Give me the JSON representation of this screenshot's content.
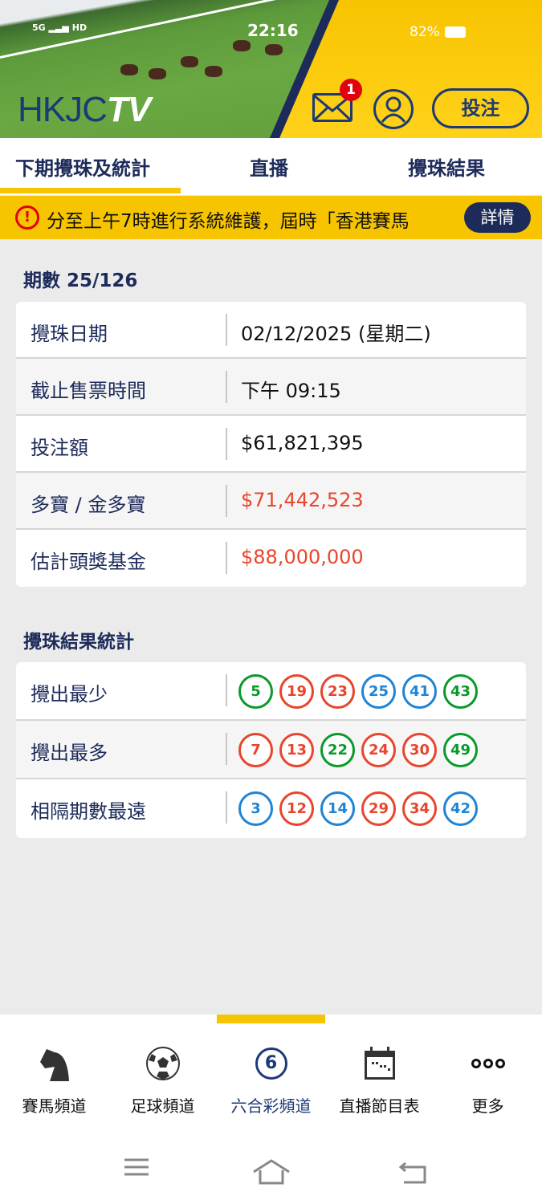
{
  "status_bar": {
    "time": "22:16",
    "battery": "82%",
    "signal": "5G",
    "hd": "HD"
  },
  "header": {
    "logo": "HKJC",
    "logo_tv": "TV",
    "notification_count": "1",
    "bet_label": "投注"
  },
  "tabs": [
    {
      "label": "下期攪珠及統計",
      "active": true
    },
    {
      "label": "直播"
    },
    {
      "label": "攪珠結果"
    }
  ],
  "notice": {
    "text": "分至上午7時進行系統維護，屆時「香港賽馬",
    "detail_label": "詳情"
  },
  "draw": {
    "title": "期數 25/126",
    "rows": [
      {
        "label": "攪珠日期",
        "value": "02/12/2025 (星期二)",
        "highlight": false
      },
      {
        "label": "截止售票時間",
        "value": "下午 09:15",
        "highlight": false
      },
      {
        "label": "投注額",
        "value": "$61,821,395",
        "highlight": false
      },
      {
        "label": "多寶 / 金多寶",
        "value": "$71,442,523",
        "highlight": true
      },
      {
        "label": "估計頭獎基金",
        "value": "$88,000,000",
        "highlight": true
      }
    ]
  },
  "stats": {
    "title": "攪珠結果統計",
    "rows": [
      {
        "label": "攪出最少",
        "balls": [
          {
            "n": "5",
            "c": "green"
          },
          {
            "n": "19",
            "c": "red"
          },
          {
            "n": "23",
            "c": "red"
          },
          {
            "n": "25",
            "c": "blue"
          },
          {
            "n": "41",
            "c": "blue"
          },
          {
            "n": "43",
            "c": "green"
          }
        ]
      },
      {
        "label": "攪出最多",
        "balls": [
          {
            "n": "7",
            "c": "red"
          },
          {
            "n": "13",
            "c": "red"
          },
          {
            "n": "22",
            "c": "green"
          },
          {
            "n": "24",
            "c": "red"
          },
          {
            "n": "30",
            "c": "red"
          },
          {
            "n": "49",
            "c": "green"
          }
        ]
      },
      {
        "label": "相隔期數最遠",
        "balls": [
          {
            "n": "3",
            "c": "blue"
          },
          {
            "n": "12",
            "c": "red"
          },
          {
            "n": "14",
            "c": "blue"
          },
          {
            "n": "29",
            "c": "red"
          },
          {
            "n": "34",
            "c": "red"
          },
          {
            "n": "42",
            "c": "blue"
          }
        ]
      }
    ]
  },
  "bottom_nav": [
    {
      "label": "賽馬頻道",
      "icon": "horse-icon"
    },
    {
      "label": "足球頻道",
      "icon": "football-icon"
    },
    {
      "label": "六合彩頻道",
      "icon": "mark-six-icon",
      "icon_text": "6",
      "active": true
    },
    {
      "label": "直播節目表",
      "icon": "calendar-icon"
    },
    {
      "label": "更多",
      "icon": "more-icon"
    }
  ],
  "colors": {
    "accent": "#f7c400",
    "navy": "#1d2b5a",
    "red": "#e8452c",
    "green": "#0a9a2a",
    "blue": "#1f84d6"
  }
}
